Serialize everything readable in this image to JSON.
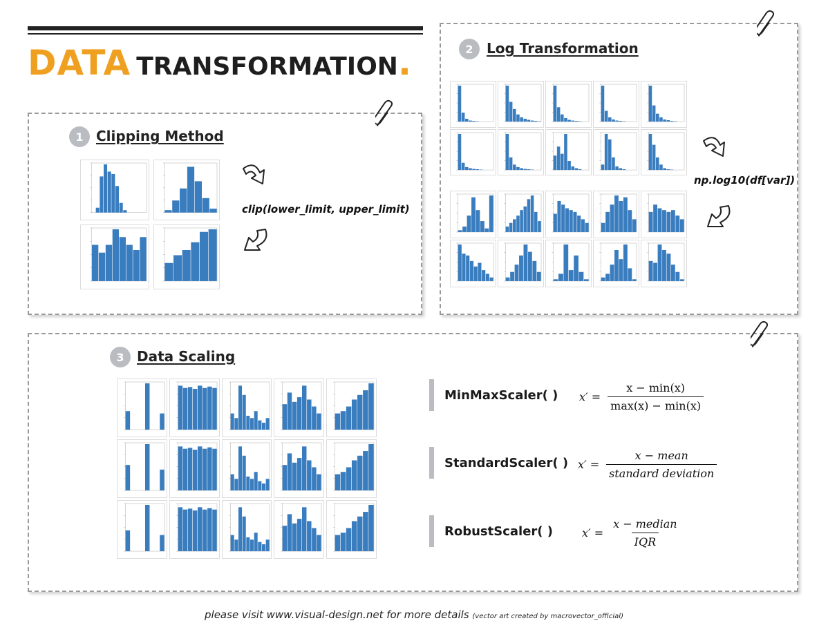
{
  "header": {
    "title_accent": "DATA",
    "title_main": "TRANSFORMATION",
    "title_dot": "."
  },
  "sections": {
    "clipping": {
      "number": "1",
      "title": "Clipping Method",
      "code": "clip(lower_limit, upper_limit)",
      "plots_before": [
        {
          "bars": [
            0,
            0.1,
            0.75,
            1.0,
            0.85,
            0.8,
            0.55,
            0.2,
            0.05,
            0,
            0,
            0,
            0,
            0
          ]
        },
        {
          "bars": [
            0.05,
            0.25,
            0.5,
            0.95,
            0.65,
            0.3,
            0.08
          ]
        }
      ],
      "plots_after": [
        {
          "bars": [
            0.7,
            0.55,
            0.7,
            1.0,
            0.85,
            0.7,
            0.6,
            0.85
          ]
        },
        {
          "bars": [
            0.35,
            0.5,
            0.6,
            0.75,
            0.95,
            1.0
          ]
        }
      ]
    },
    "log": {
      "number": "2",
      "title": "Log Transformation",
      "code": "np.log10(df[var])",
      "plots_before": [
        {
          "bars": [
            1.0,
            0.25,
            0.08,
            0.03,
            0.02,
            0.01,
            0,
            0,
            0,
            0
          ]
        },
        {
          "bars": [
            1.0,
            0.55,
            0.35,
            0.2,
            0.12,
            0.08,
            0.05,
            0.03,
            0.02,
            0.01
          ]
        },
        {
          "bars": [
            1.0,
            0.4,
            0.2,
            0.1,
            0.05,
            0.03,
            0.02,
            0.01,
            0,
            0
          ]
        },
        {
          "bars": [
            1.0,
            0.3,
            0.12,
            0.06,
            0.03,
            0.02,
            0.01,
            0,
            0,
            0
          ]
        },
        {
          "bars": [
            1.0,
            0.45,
            0.22,
            0.12,
            0.06,
            0.04,
            0.02,
            0.01,
            0,
            0
          ]
        },
        {
          "bars": [
            1.0,
            0.2,
            0.08,
            0.05,
            0.03,
            0.02,
            0.01,
            0,
            0,
            0
          ]
        },
        {
          "bars": [
            1.0,
            0.35,
            0.15,
            0.08,
            0.05,
            0.03,
            0.02,
            0.01,
            0,
            0
          ]
        },
        {
          "bars": [
            0.4,
            0.65,
            0.45,
            1.0,
            0.25,
            0.1,
            0.05,
            0.02,
            0,
            0
          ]
        },
        {
          "bars": [
            0.15,
            1.0,
            0.85,
            0.35,
            0.1,
            0.05,
            0.02,
            0,
            0,
            0
          ]
        },
        {
          "bars": [
            1.0,
            0.7,
            0.35,
            0.15,
            0.05,
            0.02,
            0.01,
            0,
            0,
            0
          ]
        }
      ],
      "plots_after": [
        {
          "bars": [
            0.05,
            0.15,
            0.45,
            0.95,
            0.6,
            0.3,
            0.1,
            1.0
          ]
        },
        {
          "bars": [
            0.15,
            0.25,
            0.35,
            0.45,
            0.6,
            0.7,
            0.9,
            1.0,
            0.55,
            0.3
          ]
        },
        {
          "bars": [
            0.5,
            0.85,
            0.75,
            0.65,
            0.6,
            0.55,
            0.45,
            0.35,
            0.25
          ]
        },
        {
          "bars": [
            0.25,
            0.55,
            0.75,
            1.0,
            0.85,
            0.95,
            0.6,
            0.35
          ]
        },
        {
          "bars": [
            0.55,
            0.75,
            0.65,
            0.6,
            0.55,
            0.6,
            0.45,
            0.35
          ]
        },
        {
          "bars": [
            1.0,
            0.75,
            0.7,
            0.55,
            0.4,
            0.5,
            0.3,
            0.2,
            0.1
          ]
        },
        {
          "bars": [
            0.1,
            0.25,
            0.45,
            0.7,
            1.0,
            0.8,
            0.55,
            0.25
          ]
        },
        {
          "bars": [
            0.05,
            0.2,
            1.0,
            0.3,
            0.7,
            0.25,
            0.05
          ]
        },
        {
          "bars": [
            0.1,
            0.2,
            0.45,
            0.85,
            0.6,
            1.0,
            0.35,
            0.05
          ]
        },
        {
          "bars": [
            0.55,
            0.5,
            1.0,
            0.85,
            0.75,
            0.45,
            0.25,
            0.05
          ]
        }
      ]
    },
    "scaling": {
      "number": "3",
      "title": "Data Scaling",
      "rows": [
        {
          "label": "MinMaxScaler()",
          "plots": [
            {
              "bars": [
                0.4,
                0,
                0,
                0,
                1.0,
                0,
                0,
                0.35
              ]
            },
            {
              "bars": [
                0.95,
                0.9,
                0.92,
                0.88,
                0.95,
                0.9,
                0.93,
                0.9
              ]
            },
            {
              "bars": [
                0.35,
                0.25,
                0.95,
                0.75,
                0.3,
                0.25,
                0.4,
                0.2,
                0.15,
                0.25
              ]
            },
            {
              "bars": [
                0.55,
                0.8,
                0.6,
                0.7,
                0.95,
                0.65,
                0.5,
                0.35
              ]
            },
            {
              "bars": [
                0.35,
                0.4,
                0.5,
                0.65,
                0.75,
                0.85,
                1.0
              ]
            }
          ]
        },
        {
          "label": "StandardScaler()",
          "plots": [
            {
              "bars": [
                0.55,
                0,
                0,
                0,
                1.0,
                0,
                0,
                0.45
              ]
            },
            {
              "bars": [
                0.95,
                0.9,
                0.92,
                0.88,
                0.95,
                0.9,
                0.93,
                0.9
              ]
            },
            {
              "bars": [
                0.35,
                0.25,
                0.95,
                0.75,
                0.3,
                0.25,
                0.4,
                0.2,
                0.15,
                0.25
              ]
            },
            {
              "bars": [
                0.55,
                0.8,
                0.6,
                0.7,
                0.95,
                0.65,
                0.5,
                0.35
              ]
            },
            {
              "bars": [
                0.35,
                0.4,
                0.5,
                0.65,
                0.75,
                0.85,
                1.0
              ]
            }
          ]
        },
        {
          "label": "RobustScaler()",
          "plots": [
            {
              "bars": [
                0.45,
                0,
                0,
                0,
                1.0,
                0,
                0,
                0.35
              ]
            },
            {
              "bars": [
                0.95,
                0.9,
                0.92,
                0.88,
                0.95,
                0.9,
                0.93,
                0.9
              ]
            },
            {
              "bars": [
                0.35,
                0.25,
                0.95,
                0.75,
                0.3,
                0.25,
                0.4,
                0.2,
                0.15,
                0.25
              ]
            },
            {
              "bars": [
                0.55,
                0.8,
                0.6,
                0.7,
                0.95,
                0.65,
                0.5,
                0.35
              ]
            },
            {
              "bars": [
                0.35,
                0.4,
                0.5,
                0.65,
                0.75,
                0.85,
                1.0
              ]
            }
          ]
        }
      ],
      "scalers": [
        {
          "name": "MinMaxScaler( )",
          "lhs": "x′ =",
          "numerator": "x − min(x)",
          "denominator": "max(x) − min(x)"
        },
        {
          "name": "StandardScaler( )",
          "lhs": "x′ =",
          "numerator": "x − mean",
          "denominator": "standard deviation"
        },
        {
          "name": "RobustScaler( )",
          "lhs": "x′ =",
          "numerator": "x − median",
          "denominator": "IQR"
        }
      ]
    }
  },
  "footer": {
    "text": "please visit www.visual-design.net for more details",
    "credit": "(vector art created by macrovector_official)"
  },
  "colors": {
    "accent": "#f0a020",
    "bar": "#3a7dbf",
    "badge": "#b9bdc2",
    "border": "#999999"
  },
  "icons": [
    "paperclip-icon",
    "curved-arrow-icon"
  ]
}
